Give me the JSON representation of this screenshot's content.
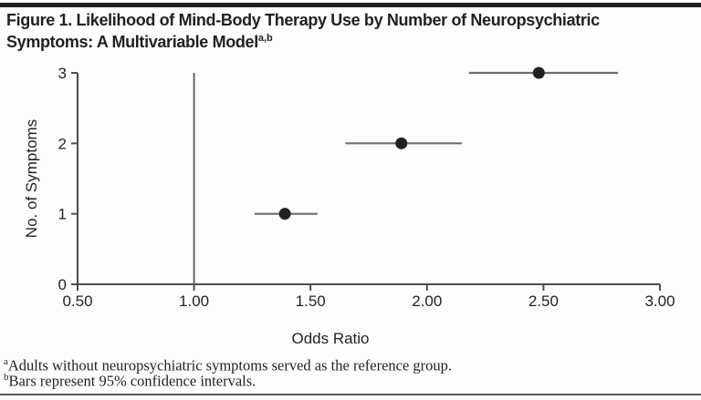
{
  "header": {
    "line1": "Figure 1. Likelihood of Mind-Body Therapy Use by Number of Neuropsychiatric",
    "line2": "Symptoms: A Multivariable Model",
    "superscript": "a,b"
  },
  "chart_data": {
    "type": "scatter",
    "subtype": "dot-with-95ci-forest",
    "title": "Likelihood of Mind-Body Therapy Use by Number of Neuropsychiatric Symptoms: A Multivariable Model",
    "xlabel": "Odds Ratio",
    "ylabel": "No. of Symptoms",
    "xlim": [
      0.5,
      3.0
    ],
    "ylim": [
      0,
      3
    ],
    "grid": false,
    "legend": "none",
    "reference_line_x": 1.0,
    "x_ticks": [
      {
        "value": 0.5,
        "label": "0.50"
      },
      {
        "value": 1.0,
        "label": "1.00"
      },
      {
        "value": 1.5,
        "label": "1.50"
      },
      {
        "value": 2.0,
        "label": "2.00"
      },
      {
        "value": 2.5,
        "label": "2.50"
      },
      {
        "value": 3.0,
        "label": "3.00"
      }
    ],
    "y_ticks": [
      {
        "value": 0,
        "label": "0"
      },
      {
        "value": 1,
        "label": "1"
      },
      {
        "value": 2,
        "label": "2"
      },
      {
        "value": 3,
        "label": "3"
      }
    ],
    "series": [
      {
        "name": "odds-ratio-by-symptom-count",
        "points": [
          {
            "symptoms": 1,
            "odds_ratio": 1.39,
            "ci_low": 1.26,
            "ci_high": 1.53
          },
          {
            "symptoms": 2,
            "odds_ratio": 1.89,
            "ci_low": 1.65,
            "ci_high": 2.15
          },
          {
            "symptoms": 3,
            "odds_ratio": 2.48,
            "ci_low": 2.18,
            "ci_high": 2.82
          }
        ]
      }
    ]
  },
  "footnotes": [
    {
      "marker": "a",
      "text": "Adults without neuropsychiatric symptoms served as the reference group."
    },
    {
      "marker": "b",
      "text": "Bars represent 95% confidence intervals."
    }
  ],
  "colors": {
    "text": "#231f20",
    "axis": "#4d4d4f",
    "reference_line": "#58595b",
    "ci_line": "#6d6e70",
    "point": "#231f20",
    "top_rule": "#231f20",
    "bottom_rule": "#58595b",
    "background": "#fdfefb"
  }
}
